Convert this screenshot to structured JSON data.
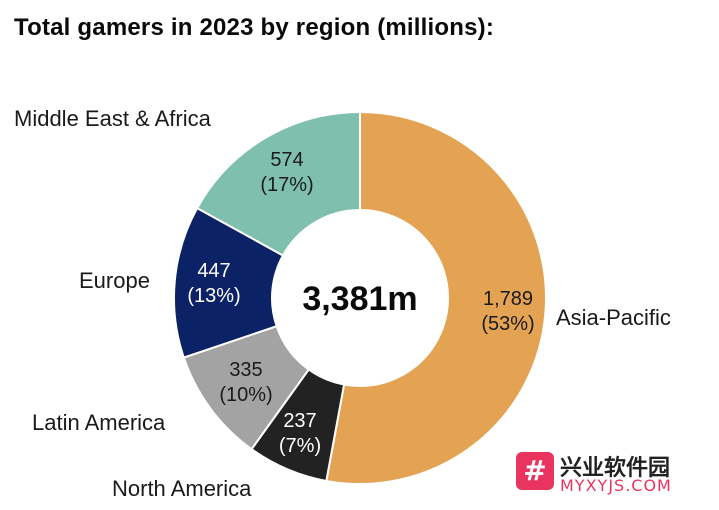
{
  "chart_data": {
    "type": "pie",
    "title": "Total gamers in 2023 by region (millions):",
    "center_label": "3,381m",
    "slices": [
      {
        "name": "Asia-Pacific",
        "value": 1789,
        "value_label": "1,789",
        "percent_label": "(53%)",
        "color": "#e3a352",
        "text_color": "#1a1a1a"
      },
      {
        "name": "North America",
        "value": 237,
        "value_label": "237",
        "percent_label": "(7%)",
        "color": "#222222",
        "text_color": "#ffffff"
      },
      {
        "name": "Latin America",
        "value": 335,
        "value_label": "335",
        "percent_label": "(10%)",
        "color": "#a3a3a3",
        "text_color": "#1a1a1a"
      },
      {
        "name": "Europe",
        "value": 447,
        "value_label": "447",
        "percent_label": "(13%)",
        "color": "#0c2266",
        "text_color": "#ffffff"
      },
      {
        "name": "Middle East & Africa",
        "value": 574,
        "value_label": "574",
        "percent_label": "(17%)",
        "color": "#7fbfae",
        "text_color": "#1a1a1a"
      }
    ]
  },
  "watermark": {
    "icon_glyph": "#",
    "chinese_text": "兴业软件园",
    "english_text": "MYXYJS.COM"
  }
}
